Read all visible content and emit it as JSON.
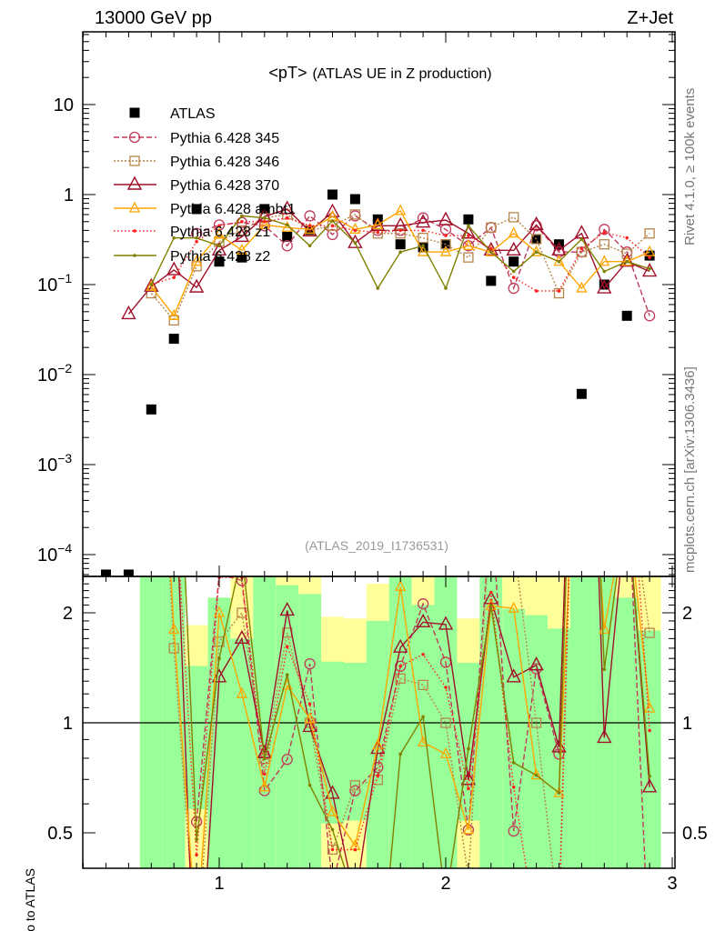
{
  "header": {
    "left": "13000 GeV pp",
    "right": "Z+Jet"
  },
  "side_labels": {
    "rivet": "Rivet 4.1.0, ≥ 100k events",
    "mcplots": "mcplots.cern.ch [arXiv:1306.3436]"
  },
  "chart_data": {
    "type": "line",
    "title": "<pT>",
    "subtitle": "(ATLAS UE in Z production)",
    "analysis_id": "(ATLAS_2019_I1736531)",
    "xlabel": "",
    "ylabel": "",
    "xlim": [
      0.4,
      3.0
    ],
    "ylim": [
      5.7e-05,
      65
    ],
    "yscale": "log",
    "x_ticks": [
      "1",
      "2",
      "3"
    ],
    "x_tick_values": [
      1,
      2,
      3
    ],
    "y_ticks": [
      {
        "value": 10,
        "base": "10",
        "exp": ""
      },
      {
        "value": 1,
        "base": "1",
        "exp": ""
      },
      {
        "value": 0.1,
        "base": "10",
        "exp": "−1"
      },
      {
        "value": 0.01,
        "base": "10",
        "exp": "−2"
      },
      {
        "value": 0.001,
        "base": "10",
        "exp": "−3"
      },
      {
        "value": 0.0001,
        "base": "10",
        "exp": "−4"
      }
    ],
    "legend_position": "top-left",
    "x": [
      0.5,
      0.6,
      0.7,
      0.8,
      0.9,
      1.0,
      1.1,
      1.2,
      1.3,
      1.4,
      1.5,
      1.6,
      1.7,
      1.8,
      1.9,
      2.0,
      2.1,
      2.2,
      2.3,
      2.4,
      2.5,
      2.6,
      2.7,
      2.8,
      2.9
    ],
    "series": [
      {
        "name": "ATLAS",
        "color": "#000000",
        "marker": "filled-square",
        "dash": "none",
        "values": [
          6e-05,
          6e-05,
          0.0041,
          0.025,
          0.69,
          0.18,
          0.2,
          0.69,
          0.34,
          0.4,
          1.0,
          0.89,
          0.53,
          0.28,
          0.26,
          0.28,
          0.53,
          0.11,
          0.18,
          0.32,
          0.28,
          0.0061,
          0.1,
          0.045,
          0.21
        ]
      },
      {
        "name": "Pythia 6.428 345",
        "color": "#c0395a",
        "marker": "open-circle",
        "dash": "6,3",
        "values": [
          null,
          null,
          null,
          null,
          0.37,
          0.46,
          0.49,
          0.45,
          0.27,
          0.58,
          0.36,
          0.58,
          0.4,
          0.4,
          0.55,
          0.41,
          0.27,
          0.43,
          0.091,
          0.45,
          0.23,
          0.23,
          0.41,
          0.23,
          0.045
        ]
      },
      {
        "name": "Pythia 6.428 346",
        "color": "#b8864b",
        "marker": "open-square",
        "dash": "2,2",
        "values": [
          null,
          null,
          0.08,
          0.04,
          0.16,
          0.3,
          0.4,
          0.55,
          0.6,
          0.4,
          0.45,
          0.6,
          0.37,
          0.37,
          0.33,
          0.28,
          0.2,
          0.43,
          0.56,
          0.32,
          0.08,
          0.23,
          0.28,
          0.22,
          0.37
        ]
      },
      {
        "name": "Pythia 6.428 370",
        "color": "#a0102a",
        "marker": "open-triangle",
        "dash": "none",
        "values": [
          null,
          0.047,
          0.095,
          0.145,
          0.093,
          0.24,
          0.34,
          0.57,
          0.69,
          0.39,
          0.64,
          0.29,
          0.45,
          0.45,
          0.49,
          0.52,
          0.37,
          0.24,
          0.24,
          0.46,
          0.24,
          0.37,
          0.091,
          0.18,
          0.14
        ]
      },
      {
        "name": "Pythia 6.428 ambt1",
        "color": "#ffa500",
        "marker": "small-triangle",
        "dash": "none",
        "values": [
          null,
          null,
          0.095,
          0.045,
          0.18,
          0.36,
          0.24,
          0.46,
          0.43,
          0.41,
          0.57,
          0.41,
          0.46,
          0.66,
          0.23,
          0.23,
          0.27,
          0.23,
          0.37,
          0.23,
          0.18,
          0.091,
          0.18,
          0.18,
          0.23
        ]
      },
      {
        "name": "Pythia 6.428 z1",
        "color": "#ff2020",
        "marker": "dot",
        "dash": "1.5,2.5",
        "values": [
          null,
          null,
          0.1,
          0.12,
          0.3,
          0.45,
          0.5,
          0.5,
          0.55,
          0.45,
          0.45,
          0.4,
          0.38,
          0.4,
          0.4,
          0.35,
          0.35,
          0.25,
          0.12,
          0.085,
          0.085,
          0.25,
          0.38,
          0.33,
          0.2
        ]
      },
      {
        "name": "Pythia 6.428 z2",
        "color": "#808000",
        "marker": "dot",
        "dash": "none",
        "values": [
          null,
          null,
          0.1,
          0.33,
          0.33,
          0.27,
          0.58,
          0.55,
          0.46,
          0.27,
          0.51,
          0.29,
          0.091,
          0.23,
          0.27,
          0.091,
          0.45,
          0.23,
          0.14,
          0.23,
          0.18,
          0.32,
          0.14,
          0.18,
          0.15
        ]
      }
    ],
    "ratio": {
      "ylabel": "Ratio to ATLAS",
      "ylim": [
        0.4,
        2.5
      ],
      "yscale": "log",
      "y_ticks": [
        {
          "value": 2,
          "label": "2"
        },
        {
          "value": 1,
          "label": "1"
        },
        {
          "value": 0.5,
          "label": "0.5"
        }
      ],
      "band_colors": {
        "yellow": "#ffff99",
        "green": "#99ff99"
      },
      "bands": [
        {
          "x": 0.7,
          "yellow": [
            0.3,
            3
          ],
          "green": [
            0.3,
            3
          ]
        },
        {
          "x": 0.8,
          "yellow": [
            0.3,
            3
          ],
          "green": [
            0.3,
            3
          ]
        },
        {
          "x": 0.9,
          "yellow": [
            0.3,
            1.85
          ],
          "green": [
            0.58,
            1.43
          ]
        },
        {
          "x": 1.0,
          "yellow": [
            0.3,
            2.2
          ],
          "green": [
            0.3,
            2.2
          ]
        },
        {
          "x": 1.1,
          "yellow": [
            0.3,
            3
          ],
          "green": [
            0.3,
            1.7
          ]
        },
        {
          "x": 1.2,
          "yellow": [
            0.3,
            3
          ],
          "green": [
            0.3,
            3
          ]
        },
        {
          "x": 1.3,
          "yellow": [
            0.3,
            3
          ],
          "green": [
            0.3,
            2.38
          ]
        },
        {
          "x": 1.4,
          "yellow": [
            0.3,
            3
          ],
          "green": [
            0.3,
            2.25
          ]
        },
        {
          "x": 1.5,
          "yellow": [
            0.3,
            1.95
          ],
          "green": [
            0.53,
            1.47
          ]
        },
        {
          "x": 1.6,
          "yellow": [
            0.3,
            1.93
          ],
          "green": [
            0.54,
            1.46
          ]
        },
        {
          "x": 1.7,
          "yellow": [
            0.3,
            2.4
          ],
          "green": [
            0.3,
            1.9
          ]
        },
        {
          "x": 1.8,
          "yellow": [
            0.3,
            3
          ],
          "green": [
            0.3,
            3
          ]
        },
        {
          "x": 1.9,
          "yellow": [
            0.3,
            3
          ],
          "green": [
            0.3,
            2.1
          ]
        },
        {
          "x": 2.0,
          "yellow": [
            0.3,
            3
          ],
          "green": [
            0.3,
            3
          ]
        },
        {
          "x": 2.1,
          "yellow": [
            0.3,
            1.93
          ],
          "green": [
            0.54,
            1.46
          ]
        },
        {
          "x": 2.2,
          "yellow": [
            0.3,
            3
          ],
          "green": [
            0.3,
            3
          ]
        },
        {
          "x": 2.3,
          "yellow": [
            0.3,
            3
          ],
          "green": [
            0.3,
            2.05
          ]
        },
        {
          "x": 2.4,
          "yellow": [
            0.3,
            3
          ],
          "green": [
            0.3,
            1.97
          ]
        },
        {
          "x": 2.5,
          "yellow": [
            0.3,
            3
          ],
          "green": [
            0.3,
            1.81
          ]
        },
        {
          "x": 2.6,
          "yellow": [
            0.3,
            3
          ],
          "green": [
            0.3,
            3
          ]
        },
        {
          "x": 2.7,
          "yellow": [
            0.3,
            3
          ],
          "green": [
            0.3,
            3
          ]
        },
        {
          "x": 2.8,
          "yellow": [
            0.3,
            3
          ],
          "green": [
            0.3,
            2.2
          ]
        },
        {
          "x": 2.9,
          "yellow": [
            0.3,
            3
          ],
          "green": [
            0.3,
            1.79
          ]
        }
      ]
    }
  }
}
